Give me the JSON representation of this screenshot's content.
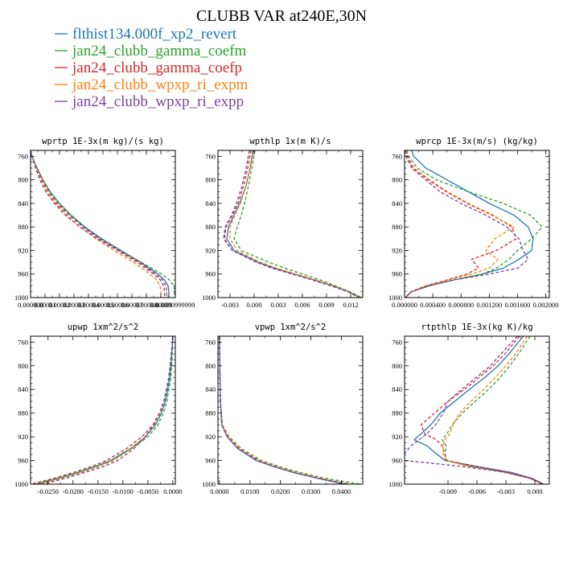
{
  "figure": {
    "title": "CLUBB VAR at240E,30N",
    "legend": [
      {
        "name": "flthist134.000f_xp2_revert",
        "color": "#1f77b4",
        "dash": "solid"
      },
      {
        "name": "jan24_clubb_gamma_coefm",
        "color": "#2ca02c",
        "dash": "dash"
      },
      {
        "name": "jan24_clubb_gamma_coefp",
        "color": "#d62728",
        "dash": "dash"
      },
      {
        "name": "jan24_clubb_wpxp_ri_expm",
        "color": "#ff7f0e",
        "dash": "dash"
      },
      {
        "name": "jan24_clubb_wpxp_ri_expp",
        "color": "#7d3fa0",
        "dash": "dash"
      }
    ]
  },
  "chart_data": [
    {
      "type": "line",
      "title": "wprtp  1E-3x(m kg)/(s kg)",
      "xlim": [
        0,
        9.99999e-05
      ],
      "ylim": [
        1000,
        750
      ],
      "xticks": [
        0,
        1e-05,
        2e-05,
        3e-05,
        4e-05,
        5e-05,
        6e-05,
        7e-05,
        8e-05,
        9e-05,
        9.99999e-05
      ],
      "xticklabels": [
        "0.000000",
        "0.00001",
        "0.00002",
        "0.00003",
        "0.00004",
        "0.00005",
        "0.00006",
        "0.00007",
        "0.00008",
        "0.00009",
        "0.0000999999"
      ],
      "yticks": [
        760,
        800,
        840,
        880,
        920,
        960,
        1000
      ],
      "yticklabels": [
        "760",
        "800",
        "840",
        "880",
        "920",
        "960",
        "1000"
      ],
      "y": [
        750,
        760,
        780,
        800,
        820,
        840,
        860,
        880,
        900,
        920,
        940,
        960,
        970,
        980,
        990,
        1000
      ],
      "series": [
        {
          "x": [
            1e-07,
            1e-06,
            4.5e-06,
            8.5e-06,
            1.35e-05,
            2e-05,
            2.8e-05,
            3.75e-05,
            4.9e-05,
            6.25e-05,
            7.6e-05,
            8.8e-05,
            9.25e-05,
            9.5e-05,
            9.55e-05,
            9.55e-05
          ]
        },
        {
          "x": [
            1e-07,
            1e-06,
            4.5e-06,
            8.5e-06,
            1.35e-05,
            1.95e-05,
            2.75e-05,
            3.65e-05,
            4.8e-05,
            6.2e-05,
            7.65e-05,
            9.05e-05,
            9.6e-05,
            9.9e-05,
            9.95e-05,
            9.95e-05
          ]
        },
        {
          "x": [
            1e-07,
            1e-06,
            4e-06,
            8e-06,
            1.25e-05,
            1.85e-05,
            2.65e-05,
            3.6e-05,
            4.75e-05,
            6.1e-05,
            7.5e-05,
            8.65e-05,
            9.1e-05,
            9.35e-05,
            9.4e-05,
            9.4e-05
          ]
        },
        {
          "x": [
            1e-07,
            1e-06,
            3.8e-06,
            7.2e-06,
            1.15e-05,
            1.75e-05,
            2.5e-05,
            3.4e-05,
            4.5e-05,
            5.75e-05,
            7.1e-05,
            8.25e-05,
            8.7e-05,
            8.95e-05,
            9e-05,
            9e-05
          ]
        },
        {
          "x": [
            1e-07,
            8e-07,
            3.4e-06,
            6.5e-06,
            1.05e-05,
            1.65e-05,
            2.4e-05,
            3.4e-05,
            4.6e-05,
            6e-05,
            7.35e-05,
            8.5e-05,
            8.95e-05,
            9.2e-05,
            9.25e-05,
            9.25e-05
          ]
        }
      ]
    },
    {
      "type": "line",
      "title": "wpthlp  1x(m K)/s",
      "xlim": [
        -0.0045,
        0.0135
      ],
      "ylim": [
        1000,
        750
      ],
      "xticks": [
        -0.003,
        0,
        0.003,
        0.006,
        0.009,
        0.012
      ],
      "xticklabels": [
        "-0.003",
        "0.000",
        "0.003",
        "0.006",
        "0.009",
        "0.012"
      ],
      "yticks": [
        760,
        800,
        840,
        880,
        920,
        960,
        1000
      ],
      "yticklabels": [
        "760",
        "800",
        "840",
        "880",
        "920",
        "960",
        "1000"
      ],
      "y": [
        750,
        780,
        810,
        840,
        860,
        880,
        900,
        920,
        940,
        950,
        960,
        970,
        980,
        990,
        1000
      ],
      "series": [
        {
          "x": [
            -0.0001,
            -0.0005,
            -0.001,
            -0.0018,
            -0.0025,
            -0.0032,
            -0.0034,
            -0.0025,
            0.0005,
            0.0025,
            0.005,
            0.0075,
            0.0098,
            0.0118,
            0.0132
          ]
        },
        {
          "x": [
            0.0001,
            -0.0003,
            -0.0007,
            -0.0012,
            -0.0016,
            -0.0021,
            -0.0025,
            -0.0016,
            0.0018,
            0.0038,
            0.006,
            0.0082,
            0.0101,
            0.0119,
            0.0134
          ]
        },
        {
          "x": [
            -0.0004,
            -0.0008,
            -0.0013,
            -0.002,
            -0.0027,
            -0.0035,
            -0.0037,
            -0.0027,
            0.0003,
            0.0023,
            0.0048,
            0.0073,
            0.0096,
            0.0117,
            0.0131
          ]
        },
        {
          "x": [
            -0.0002,
            -0.0005,
            -0.001,
            -0.0017,
            -0.0024,
            -0.003,
            -0.003,
            -0.0021,
            0.0008,
            0.0028,
            0.0052,
            0.0076,
            0.0098,
            0.0117,
            0.0131
          ]
        },
        {
          "x": [
            -0.0006,
            -0.001,
            -0.0015,
            -0.0022,
            -0.0028,
            -0.0036,
            -0.0038,
            -0.0027,
            0.0003,
            0.0022,
            0.0047,
            0.0072,
            0.0095,
            0.0116,
            0.013
          ]
        }
      ]
    },
    {
      "type": "line",
      "title": "wprcp  1E-3x(m/s) (kg/kg)",
      "xlim": [
        0,
        0.00205
      ],
      "ylim": [
        1000,
        750
      ],
      "xticks": [
        0,
        0.0004,
        0.0008,
        0.0012,
        0.0016,
        0.002
      ],
      "xticklabels": [
        "0.000000",
        "0.000400",
        "0.000800",
        "0.001200",
        "0.001600",
        "0.002000"
      ],
      "yticks": [
        760,
        800,
        840,
        880,
        920,
        960,
        1000
      ],
      "yticklabels": [
        "760",
        "800",
        "840",
        "880",
        "920",
        "960",
        "1000"
      ],
      "y": [
        750,
        760,
        780,
        800,
        820,
        840,
        860,
        880,
        900,
        920,
        935,
        950,
        960,
        970,
        980,
        990,
        1000
      ],
      "series": [
        {
          "x": [
            0.0001,
            0.00013,
            0.0003,
            0.0006,
            0.0009,
            0.0012,
            0.00155,
            0.00175,
            0.00182,
            0.0018,
            0.00162,
            0.0014,
            0.0011,
            0.0007,
            0.00035,
            0.0001,
            1e-05
          ]
        },
        {
          "x": [
            3e-05,
            6e-05,
            0.00018,
            0.00045,
            0.0009,
            0.0014,
            0.00178,
            0.00195,
            0.0018,
            0.0016,
            0.00148,
            0.0013,
            0.0011,
            0.0007,
            0.00035,
            0.0001,
            1e-05
          ]
        },
        {
          "x": [
            2e-05,
            4e-05,
            0.00013,
            0.00035,
            0.0006,
            0.0009,
            0.00125,
            0.00152,
            0.00158,
            0.0013,
            0.00095,
            0.00105,
            0.00088,
            0.0006,
            0.0003,
            9e-05,
            1e-05
          ]
        },
        {
          "x": [
            2e-05,
            3e-05,
            0.00012,
            0.00033,
            0.00058,
            0.00088,
            0.00123,
            0.00155,
            0.00128,
            0.00115,
            0.00132,
            0.0012,
            0.00095,
            0.00062,
            0.0003,
            9e-05,
            1e-05
          ]
        },
        {
          "x": [
            1e-05,
            2e-05,
            0.0001,
            0.0003,
            0.0005,
            0.0008,
            0.00115,
            0.00145,
            0.00162,
            0.00168,
            0.00175,
            0.0016,
            0.0012,
            0.0007,
            0.00033,
            0.0001,
            1e-05
          ]
        }
      ]
    },
    {
      "type": "line",
      "title": "upwp  1xm^2/s^2",
      "xlim": [
        -0.0285,
        0.0005
      ],
      "ylim": [
        1000,
        750
      ],
      "xticks": [
        -0.025,
        -0.02,
        -0.015,
        -0.01,
        -0.005,
        0
      ],
      "xticklabels": [
        "-0.0250",
        "-0.0200",
        "-0.0150",
        "-0.0100",
        "-0.0050",
        "0.0000"
      ],
      "yticks": [
        760,
        800,
        840,
        880,
        920,
        960,
        1000
      ],
      "yticklabels": [
        "760",
        "800",
        "840",
        "880",
        "920",
        "960",
        "1000"
      ],
      "y": [
        750,
        780,
        820,
        860,
        880,
        900,
        920,
        940,
        960,
        970,
        980,
        990,
        1000
      ],
      "series": [
        {
          "x": [
            0,
            -0.0002,
            -0.0006,
            -0.0015,
            -0.0023,
            -0.0035,
            -0.0055,
            -0.0085,
            -0.0125,
            -0.0155,
            -0.019,
            -0.023,
            -0.0275
          ]
        },
        {
          "x": [
            0,
            -0.0001,
            -0.0004,
            -0.0012,
            -0.0019,
            -0.003,
            -0.005,
            -0.0083,
            -0.0123,
            -0.0153,
            -0.0188,
            -0.0228,
            -0.0273
          ]
        },
        {
          "x": [
            0,
            -0.0003,
            -0.0008,
            -0.0018,
            -0.0027,
            -0.004,
            -0.0062,
            -0.0093,
            -0.0133,
            -0.0163,
            -0.0198,
            -0.0238,
            -0.0285
          ]
        },
        {
          "x": [
            0,
            -0.0003,
            -0.0008,
            -0.0017,
            -0.0025,
            -0.0037,
            -0.0056,
            -0.0083,
            -0.0118,
            -0.0148,
            -0.0183,
            -0.0223,
            -0.0268
          ]
        },
        {
          "x": [
            0,
            -0.0003,
            -0.0008,
            -0.0018,
            -0.0027,
            -0.0039,
            -0.0055,
            -0.0078,
            -0.011,
            -0.0138,
            -0.0175,
            -0.0215,
            -0.026
          ]
        }
      ]
    },
    {
      "type": "line",
      "title": "vpwp  1xm^2/s^2",
      "xlim": [
        -0.0005,
        0.047
      ],
      "ylim": [
        1000,
        750
      ],
      "xticks": [
        0,
        0.01,
        0.02,
        0.03,
        0.04
      ],
      "xticklabels": [
        "0.0000",
        "0.0100",
        "0.0200",
        "0.0300",
        "0.0400"
      ],
      "yticks": [
        760,
        800,
        840,
        880,
        920,
        960,
        1000
      ],
      "yticklabels": [
        "760",
        "800",
        "840",
        "880",
        "920",
        "960",
        "1000"
      ],
      "y": [
        750,
        800,
        860,
        900,
        920,
        940,
        960,
        970,
        980,
        990,
        1000
      ],
      "series": [
        {
          "x": [
            0,
            0.0001,
            0.0003,
            0.0008,
            0.0025,
            0.006,
            0.012,
            0.0175,
            0.024,
            0.032,
            0.041
          ]
        },
        {
          "x": [
            0,
            0.0001,
            0.0003,
            0.001,
            0.0032,
            0.0072,
            0.0138,
            0.0195,
            0.0262,
            0.0345,
            0.0462
          ]
        },
        {
          "x": [
            0,
            0.0001,
            0.0003,
            0.0008,
            0.0028,
            0.0065,
            0.0128,
            0.0183,
            0.0248,
            0.0328,
            0.0425
          ]
        },
        {
          "x": [
            0,
            0.0001,
            0.0003,
            0.0009,
            0.003,
            0.0068,
            0.0132,
            0.0187,
            0.0252,
            0.0332,
            0.043
          ]
        },
        {
          "x": [
            0,
            0.0001,
            0.0003,
            0.0007,
            0.0026,
            0.0062,
            0.0124,
            0.0178,
            0.0242,
            0.0322,
            0.042
          ]
        }
      ]
    },
    {
      "type": "line",
      "title": "rtpthlp  1E-3x(kg K)/kg",
      "xlim": [
        -0.0135,
        0.0015
      ],
      "ylim": [
        1000,
        750
      ],
      "xticks": [
        -0.009,
        -0.006,
        -0.003,
        0
      ],
      "xticklabels": [
        "-0.009",
        "-0.006",
        "-0.003",
        "0.000"
      ],
      "yticks": [
        760,
        800,
        840,
        880,
        920,
        960,
        1000
      ],
      "yticklabels": [
        "760",
        "800",
        "840",
        "880",
        "920",
        "960",
        "1000"
      ],
      "y": [
        750,
        780,
        800,
        820,
        840,
        860,
        880,
        900,
        915,
        925,
        935,
        950,
        960,
        970,
        980,
        990,
        1000
      ],
      "series": [
        {
          "x": [
            -0.0012,
            -0.0027,
            -0.0038,
            -0.0052,
            -0.0068,
            -0.0083,
            -0.0098,
            -0.0108,
            -0.0118,
            -0.0125,
            -0.0112,
            -0.0101,
            -0.0093,
            -0.006,
            -0.0025,
            -0.0003,
            0.0009
          ]
        },
        {
          "x": [
            -0.0005,
            -0.0017,
            -0.0026,
            -0.0036,
            -0.0048,
            -0.0062,
            -0.0075,
            -0.0086,
            -0.0091,
            -0.0096,
            -0.0092,
            -0.0093,
            -0.0091,
            -0.0066,
            -0.003,
            -0.0005,
            0.0009
          ]
        },
        {
          "x": [
            -0.0016,
            -0.0031,
            -0.0043,
            -0.0058,
            -0.0073,
            -0.009,
            -0.0104,
            -0.0118,
            -0.0114,
            -0.0102,
            -0.0096,
            -0.0093,
            -0.0092,
            -0.0062,
            -0.0028,
            -0.0004,
            0.0009
          ]
        },
        {
          "x": [
            -0.0008,
            -0.002,
            -0.003,
            -0.0041,
            -0.0053,
            -0.0066,
            -0.0078,
            -0.0085,
            -0.0088,
            -0.0093,
            -0.0095,
            -0.0095,
            -0.0092,
            -0.0068,
            -0.0032,
            -0.0005,
            0.0008
          ]
        },
        {
          "x": [
            -0.0018,
            -0.0035,
            -0.0046,
            -0.0061,
            -0.0076,
            -0.009,
            -0.0095,
            -0.0103,
            -0.0112,
            -0.012,
            -0.0128,
            -0.0136,
            -0.0135,
            -0.0075,
            -0.003,
            -0.0005,
            0.0008
          ]
        }
      ]
    }
  ]
}
